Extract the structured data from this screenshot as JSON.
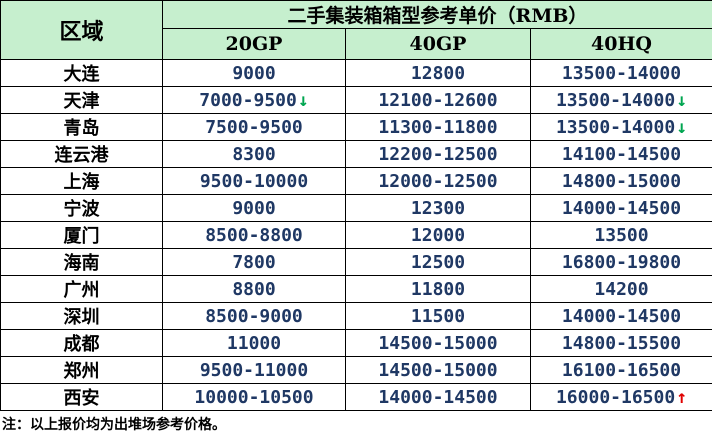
{
  "table": {
    "region_header": "区域",
    "title": "二手集装箱箱型参考单价（RMB）",
    "columns": [
      "20GP",
      "40GP",
      "40HQ"
    ],
    "rows": [
      {
        "city": "大连",
        "gp20": "9000",
        "gp40": "12800",
        "hq40": "13500-14000",
        "trend": [
          "",
          "",
          ""
        ]
      },
      {
        "city": "天津",
        "gp20": "7000-9500",
        "gp40": "12100-12600",
        "hq40": "13500-14000",
        "trend": [
          "down",
          "",
          "down"
        ]
      },
      {
        "city": "青岛",
        "gp20": "7500-9500",
        "gp40": "11300-11800",
        "hq40": "13500-14000",
        "trend": [
          "",
          "",
          "down"
        ]
      },
      {
        "city": "连云港",
        "gp20": "8300",
        "gp40": "12200-12500",
        "hq40": "14100-14500",
        "trend": [
          "",
          "",
          ""
        ]
      },
      {
        "city": "上海",
        "gp20": "9500-10000",
        "gp40": "12000-12500",
        "hq40": "14800-15000",
        "trend": [
          "",
          "",
          ""
        ]
      },
      {
        "city": "宁波",
        "gp20": "9000",
        "gp40": "12300",
        "hq40": "14000-14500",
        "trend": [
          "",
          "",
          ""
        ]
      },
      {
        "city": "厦门",
        "gp20": "8500-8800",
        "gp40": "12000",
        "hq40": "13500",
        "trend": [
          "",
          "",
          ""
        ]
      },
      {
        "city": "海南",
        "gp20": "7800",
        "gp40": "12500",
        "hq40": "16800-19800",
        "trend": [
          "",
          "",
          ""
        ]
      },
      {
        "city": "广州",
        "gp20": "8800",
        "gp40": "11800",
        "hq40": "14200",
        "trend": [
          "",
          "",
          ""
        ]
      },
      {
        "city": "深圳",
        "gp20": "8500-9000",
        "gp40": "11500",
        "hq40": "14000-14500",
        "trend": [
          "",
          "",
          ""
        ]
      },
      {
        "city": "成都",
        "gp20": "11000",
        "gp40": "14500-15000",
        "hq40": "14800-15500",
        "trend": [
          "",
          "",
          ""
        ]
      },
      {
        "city": "郑州",
        "gp20": "9500-11000",
        "gp40": "14500-15000",
        "hq40": "16100-16500",
        "trend": [
          "",
          "",
          ""
        ]
      },
      {
        "city": "西安",
        "gp20": "10000-10500",
        "gp40": "14000-14500",
        "hq40": "16000-16500",
        "trend": [
          "",
          "",
          "up"
        ]
      }
    ]
  },
  "arrows": {
    "down": "↓",
    "up": "↑"
  },
  "colors": {
    "header_bg": "#c6efce",
    "value_text": "#1f3864",
    "arrow_down": "#00a550",
    "arrow_up": "#e00000"
  },
  "footnote": "注：以上报价均为出堆场参考价格。"
}
